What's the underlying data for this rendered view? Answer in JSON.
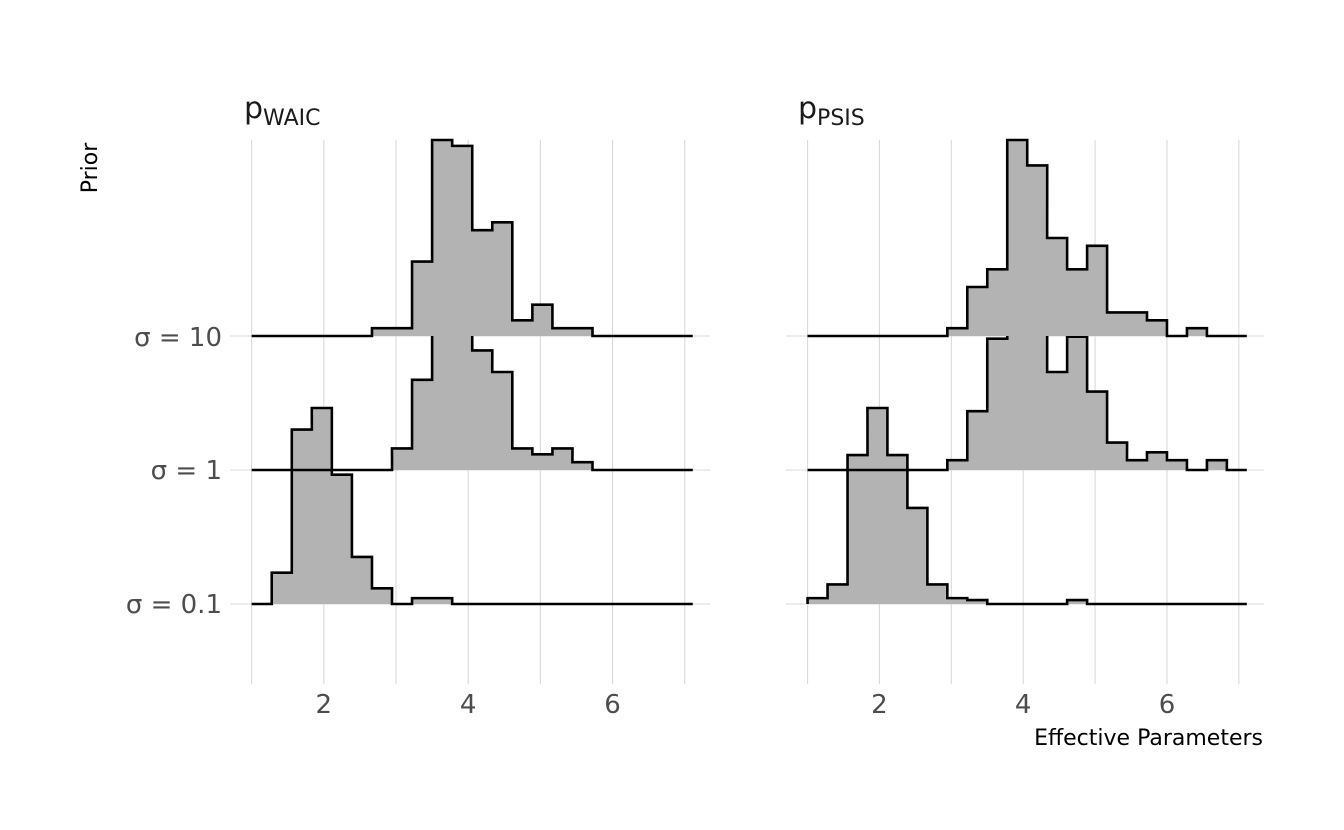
{
  "chart_data": {
    "type": "ridgeline-histogram",
    "xlabel": "Effective Parameters",
    "ylabel": "Prior",
    "xlim": [
      0.7,
      7.35
    ],
    "x_ticks": [
      "2",
      "4",
      "6"
    ],
    "priors": [
      "σ = 0.1",
      "σ = 1",
      "σ = 10"
    ],
    "bin_starts": [
      1.0,
      1.278,
      1.556,
      1.833,
      2.111,
      2.389,
      2.667,
      2.944,
      3.222,
      3.5,
      3.778,
      4.056,
      4.333,
      4.611,
      4.889,
      5.167,
      5.444,
      5.722,
      6.0,
      6.278,
      6.556,
      6.833
    ],
    "bin_width": 0.278,
    "panels": [
      {
        "name": "pWAIC",
        "title_main": "p",
        "title_sub": "WAIC",
        "series": [
          {
            "name": "σ = 0.1",
            "values": [
              0,
              0.16,
              0.89,
              1.0,
              0.66,
              0.24,
              0.08,
              0,
              0.03,
              0.03,
              0,
              0,
              0,
              0,
              0,
              0,
              0,
              0,
              0,
              0,
              0,
              0
            ]
          },
          {
            "name": "σ = 1",
            "values": [
              0,
              0,
              0,
              0,
              0,
              0,
              0,
              0.11,
              0.46,
              0.89,
              0.93,
              0.61,
              0.5,
              0.11,
              0.08,
              0.11,
              0.04,
              0,
              0,
              0,
              0,
              0
            ]
          },
          {
            "name": "σ = 10",
            "values": [
              0,
              0,
              0,
              0,
              0,
              0,
              0.04,
              0.04,
              0.38,
              1.0,
              0.97,
              0.54,
              0.58,
              0.08,
              0.16,
              0.04,
              0.04,
              0,
              0,
              0,
              0,
              0
            ]
          }
        ]
      },
      {
        "name": "pPSIS",
        "title_main": "p",
        "title_sub": "PSIS",
        "series": [
          {
            "name": "σ = 0.1",
            "values": [
              0.03,
              0.1,
              0.76,
              1.0,
              0.76,
              0.49,
              0.1,
              0.03,
              0.02,
              0,
              0,
              0,
              0,
              0.02,
              0,
              0,
              0,
              0,
              0,
              0,
              0,
              0
            ]
          },
          {
            "name": "σ = 1",
            "values": [
              0,
              0,
              0,
              0,
              0,
              0,
              0,
              0.05,
              0.3,
              0.67,
              0.95,
              1.0,
              0.5,
              0.68,
              0.4,
              0.14,
              0.05,
              0.09,
              0.05,
              0,
              0.05,
              0
            ]
          },
          {
            "name": "σ = 10",
            "values": [
              0,
              0,
              0,
              0,
              0,
              0,
              0,
              0.04,
              0.25,
              0.34,
              1.0,
              0.87,
              0.5,
              0.34,
              0.46,
              0.12,
              0.12,
              0.08,
              0,
              0.04,
              0,
              0
            ]
          }
        ]
      }
    ]
  }
}
